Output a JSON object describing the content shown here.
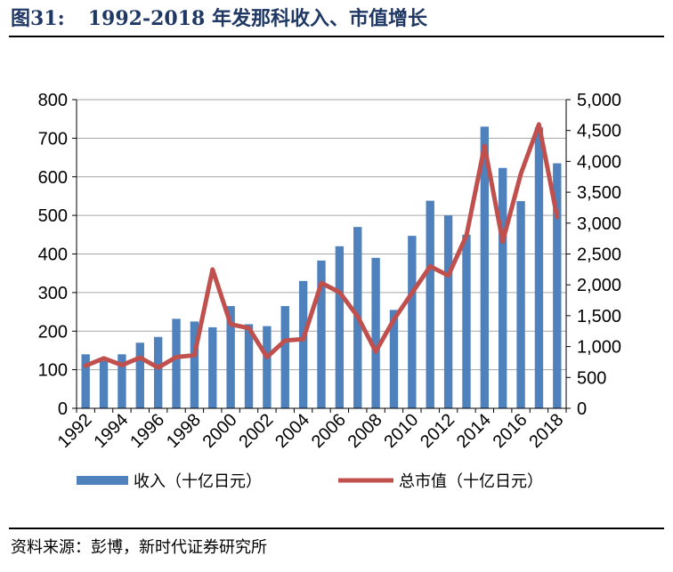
{
  "figure": {
    "number": "图31:",
    "title": "1992-2018 年发那科收入、市值增长"
  },
  "source": "资料来源：彭博，新时代证券研究所",
  "colors": {
    "bar": "#4f81bd",
    "line": "#c0504d",
    "title": "#1f3864",
    "grid": "#a6a6a6"
  },
  "chart_data": {
    "type": "bar",
    "x": [
      1992,
      1993,
      1994,
      1995,
      1996,
      1997,
      1998,
      1999,
      2000,
      2001,
      2002,
      2003,
      2004,
      2005,
      2006,
      2007,
      2008,
      2009,
      2010,
      2011,
      2012,
      2013,
      2014,
      2015,
      2016,
      2017,
      2018
    ],
    "x_tick_labels": [
      "1992",
      "1994",
      "1996",
      "1998",
      "2000",
      "2002",
      "2004",
      "2006",
      "2008",
      "2010",
      "2012",
      "2014",
      "2016",
      "2018"
    ],
    "y_left": {
      "ticks": [
        0,
        100,
        200,
        300,
        400,
        500,
        600,
        700,
        800
      ],
      "tick_labels": [
        "0",
        "100",
        "200",
        "300",
        "400",
        "500",
        "600",
        "700",
        "800"
      ],
      "lim": [
        0,
        800
      ]
    },
    "y_right": {
      "ticks": [
        0,
        500,
        1000,
        1500,
        2000,
        2500,
        3000,
        3500,
        4000,
        4500,
        5000
      ],
      "tick_labels": [
        "0",
        "500",
        "1,000",
        "1,500",
        "2,000",
        "2,500",
        "3,000",
        "3,500",
        "4,000",
        "4,500",
        "5,000"
      ],
      "lim": [
        0,
        5000
      ]
    },
    "grid": true,
    "legend_position": "bottom",
    "series": [
      {
        "name": "收入（十亿日元）",
        "type": "bar",
        "axis": "left",
        "values": [
          140,
          123,
          140,
          170,
          185,
          232,
          225,
          210,
          265,
          218,
          213,
          265,
          330,
          383,
          420,
          470,
          390,
          255,
          447,
          538,
          500,
          450,
          730,
          623,
          537,
          728,
          635
        ]
      },
      {
        "name": "总市值（十亿日元）",
        "type": "line",
        "axis": "right",
        "values": [
          690,
          810,
          700,
          820,
          660,
          830,
          860,
          2250,
          1360,
          1300,
          830,
          1100,
          1120,
          2030,
          1880,
          1490,
          920,
          1440,
          1870,
          2300,
          2150,
          2800,
          4250,
          2700,
          3800,
          4600,
          3100
        ]
      }
    ]
  }
}
